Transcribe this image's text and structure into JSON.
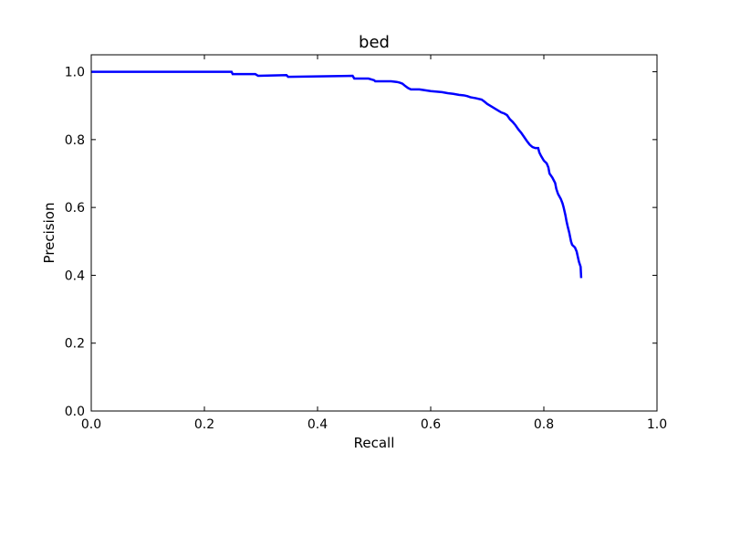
{
  "chart_data": {
    "type": "line",
    "title": "bed",
    "xlabel": "Recall",
    "ylabel": "Precision",
    "xlim": [
      0.0,
      1.0
    ],
    "ylim": [
      0.0,
      1.05
    ],
    "xticks": [
      0.0,
      0.2,
      0.4,
      0.6,
      0.8,
      1.0
    ],
    "yticks": [
      0.0,
      0.2,
      0.4,
      0.6,
      0.8,
      1.0
    ],
    "xtick_labels": [
      "0.0",
      "0.2",
      "0.4",
      "0.6",
      "0.8",
      "1.0"
    ],
    "ytick_labels": [
      "0.0",
      "0.2",
      "0.4",
      "0.6",
      "0.8",
      "1.0"
    ],
    "grid": false,
    "legend": "none",
    "series": [
      {
        "color": "#0000ff",
        "x": [
          0.0,
          0.248,
          0.25,
          0.29,
          0.295,
          0.345,
          0.348,
          0.462,
          0.465,
          0.49,
          0.5,
          0.502,
          0.51,
          0.53,
          0.54,
          0.545,
          0.55,
          0.555,
          0.56,
          0.565,
          0.58,
          0.6,
          0.62,
          0.63,
          0.64,
          0.65,
          0.66,
          0.665,
          0.67,
          0.68,
          0.69,
          0.695,
          0.7,
          0.705,
          0.71,
          0.715,
          0.72,
          0.725,
          0.73,
          0.735,
          0.74,
          0.745,
          0.75,
          0.755,
          0.76,
          0.765,
          0.77,
          0.775,
          0.78,
          0.785,
          0.79,
          0.792,
          0.795,
          0.8,
          0.805,
          0.808,
          0.81,
          0.815,
          0.82,
          0.822,
          0.825,
          0.83,
          0.833,
          0.835,
          0.838,
          0.84,
          0.842,
          0.845,
          0.848,
          0.85,
          0.855,
          0.858,
          0.86,
          0.862,
          0.865,
          0.866
        ],
        "y": [
          1.0,
          1.0,
          0.993,
          0.993,
          0.988,
          0.99,
          0.985,
          0.988,
          0.98,
          0.98,
          0.975,
          0.972,
          0.972,
          0.972,
          0.97,
          0.968,
          0.965,
          0.958,
          0.952,
          0.948,
          0.948,
          0.943,
          0.94,
          0.937,
          0.935,
          0.932,
          0.93,
          0.928,
          0.925,
          0.922,
          0.918,
          0.912,
          0.905,
          0.9,
          0.895,
          0.89,
          0.885,
          0.88,
          0.877,
          0.872,
          0.86,
          0.852,
          0.842,
          0.83,
          0.82,
          0.808,
          0.796,
          0.785,
          0.778,
          0.775,
          0.775,
          0.762,
          0.752,
          0.738,
          0.73,
          0.718,
          0.7,
          0.688,
          0.672,
          0.655,
          0.64,
          0.625,
          0.612,
          0.6,
          0.578,
          0.56,
          0.545,
          0.525,
          0.5,
          0.49,
          0.482,
          0.47,
          0.455,
          0.44,
          0.425,
          0.392
        ]
      }
    ]
  }
}
